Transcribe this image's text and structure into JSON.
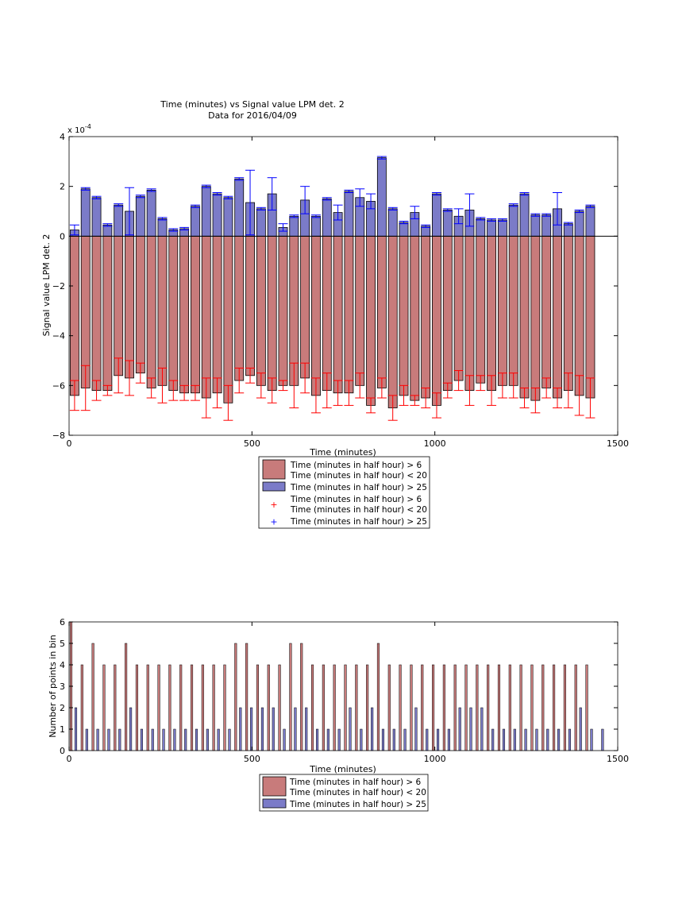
{
  "chart_data": [
    {
      "type": "bar",
      "title": "Time (minutes) vs Signal value LPM det. 2",
      "subtitle": "Data for 2016/04/09",
      "xlabel": "Time (minutes)",
      "ylabel": "Signal value LPM det. 2",
      "y_exponent": "x 10",
      "y_exponent_power": "-4",
      "xlim": [
        0,
        1500
      ],
      "ylim": [
        -8,
        4
      ],
      "xticks": [
        "0",
        "500",
        "1000",
        "1500"
      ],
      "yticks": [
        "−8",
        "−6",
        "−4",
        "−2",
        "0",
        "2",
        "4"
      ],
      "bar_width_minutes": 24,
      "categories": [
        15,
        45,
        75,
        105,
        135,
        165,
        195,
        225,
        255,
        285,
        315,
        345,
        375,
        405,
        435,
        465,
        495,
        525,
        555,
        585,
        615,
        645,
        675,
        705,
        735,
        765,
        795,
        825,
        855,
        885,
        915,
        945,
        975,
        1005,
        1035,
        1065,
        1095,
        1125,
        1155,
        1185,
        1215,
        1245,
        1275,
        1305,
        1335,
        1365,
        1395,
        1425
      ],
      "series": [
        {
          "name": "Time (minutes in half hour) > 6\nTime (minutes in half hour) < 20",
          "color": "#c87b7b",
          "error_color": "#ff0000",
          "values": [
            -6.4,
            -6.1,
            -6.2,
            -6.2,
            -5.6,
            -5.7,
            -5.5,
            -6.1,
            -6.0,
            -6.2,
            -6.3,
            -6.3,
            -6.5,
            -6.3,
            -6.7,
            -5.8,
            -5.6,
            -6.0,
            -6.2,
            -6.0,
            -6.0,
            -5.7,
            -6.4,
            -6.2,
            -6.3,
            -6.3,
            -6.0,
            -6.8,
            -6.1,
            -6.9,
            -6.4,
            -6.6,
            -6.5,
            -6.8,
            -6.2,
            -5.8,
            -6.2,
            -5.9,
            -6.2,
            -6.0,
            -6.0,
            -6.5,
            -6.6,
            -6.1,
            -6.5,
            -6.2,
            -6.4,
            -6.5
          ],
          "errors": [
            0.6,
            0.9,
            0.4,
            0.2,
            0.7,
            0.7,
            0.4,
            0.4,
            0.7,
            0.4,
            0.3,
            0.3,
            0.8,
            0.6,
            0.7,
            0.5,
            0.3,
            0.5,
            0.5,
            0.2,
            0.9,
            0.6,
            0.7,
            0.7,
            0.5,
            0.5,
            0.5,
            0.3,
            0.4,
            0.5,
            0.4,
            0.2,
            0.4,
            0.5,
            0.3,
            0.4,
            0.6,
            0.3,
            0.6,
            0.5,
            0.5,
            0.4,
            0.5,
            0.4,
            0.4,
            0.7,
            0.8,
            0.8
          ]
        },
        {
          "name": "Time (minutes in half hour) > 25",
          "color": "#7b7bc8",
          "error_color": "#0000ff",
          "values": [
            0.25,
            1.9,
            1.55,
            0.45,
            1.25,
            1.0,
            1.6,
            1.85,
            0.7,
            0.25,
            0.3,
            1.2,
            2.0,
            1.7,
            1.55,
            2.3,
            1.35,
            1.1,
            1.7,
            0.35,
            0.8,
            1.45,
            0.8,
            1.5,
            0.95,
            1.8,
            1.55,
            1.4,
            3.15,
            1.1,
            0.55,
            0.95,
            0.4,
            1.7,
            1.05,
            0.8,
            1.05,
            0.7,
            0.65,
            0.65,
            1.25,
            1.7,
            0.85,
            0.85,
            1.1,
            0.5,
            1.0,
            1.2
          ],
          "errors": [
            0.2,
            0.05,
            0.05,
            0.05,
            0.05,
            0.95,
            0.05,
            0.05,
            0.05,
            0.05,
            0.05,
            0.05,
            0.05,
            0.05,
            0.05,
            0.05,
            1.3,
            0.05,
            0.65,
            0.15,
            0.05,
            0.55,
            0.05,
            0.05,
            0.3,
            0.05,
            0.35,
            0.3,
            0.05,
            0.05,
            0.05,
            0.25,
            0.05,
            0.05,
            0.05,
            0.3,
            0.65,
            0.05,
            0.05,
            0.05,
            0.05,
            0.05,
            0.05,
            0.05,
            0.65,
            0.05,
            0.05,
            0.05
          ]
        }
      ],
      "legend": {
        "placement": "below",
        "entries": [
          {
            "kind": "bar",
            "color": "#c87b7b",
            "lines": [
              "Time (minutes in half hour) > 6",
              "Time (minutes in half hour) < 20"
            ]
          },
          {
            "kind": "bar",
            "color": "#7b7bc8",
            "lines": [
              "Time (minutes in half hour) > 25"
            ]
          },
          {
            "kind": "marker",
            "color": "#ff0000",
            "lines": [
              "Time (minutes in half hour) > 6",
              "Time (minutes in half hour) < 20"
            ]
          },
          {
            "kind": "marker",
            "color": "#0000ff",
            "lines": [
              "Time (minutes in half hour) > 25"
            ]
          }
        ]
      }
    },
    {
      "type": "bar",
      "xlabel": "Time (minutes)",
      "ylabel": "Number of points in bin",
      "xlim": [
        0,
        1500
      ],
      "ylim": [
        0,
        6
      ],
      "xticks": [
        "0",
        "500",
        "1000",
        "1500"
      ],
      "yticks": [
        "0",
        "1",
        "2",
        "3",
        "4",
        "5",
        "6"
      ],
      "categories": [
        0,
        30,
        60,
        90,
        120,
        150,
        180,
        210,
        240,
        270,
        300,
        330,
        360,
        390,
        420,
        450,
        480,
        510,
        540,
        570,
        600,
        630,
        660,
        690,
        720,
        750,
        780,
        810,
        840,
        870,
        900,
        930,
        960,
        990,
        1020,
        1050,
        1080,
        1110,
        1140,
        1170,
        1200,
        1230,
        1260,
        1290,
        1320,
        1350,
        1380,
        1410,
        1440
      ],
      "series": [
        {
          "name": "Time (minutes in half hour) > 6\nTime (minutes in half hour) < 20",
          "color": "#c87b7b",
          "values": [
            6,
            4,
            5,
            4,
            4,
            5,
            4,
            4,
            4,
            4,
            4,
            4,
            4,
            4,
            4,
            5,
            5,
            4,
            4,
            4,
            5,
            5,
            4,
            4,
            4,
            4,
            4,
            4,
            5,
            4,
            4,
            4,
            4,
            4,
            4,
            4,
            4,
            4,
            4,
            4,
            4,
            4,
            4,
            4,
            4,
            4,
            4,
            4,
            null
          ]
        },
        {
          "name": "Time (minutes in half hour) > 25",
          "color": "#7b7bc8",
          "values": [
            2,
            1,
            1,
            1,
            1,
            2,
            1,
            1,
            1,
            1,
            1,
            1,
            1,
            1,
            1,
            2,
            2,
            2,
            2,
            1,
            2,
            2,
            1,
            1,
            1,
            2,
            1,
            2,
            1,
            1,
            1,
            2,
            1,
            1,
            1,
            2,
            2,
            2,
            1,
            1,
            1,
            1,
            1,
            1,
            1,
            1,
            2,
            1,
            1
          ]
        }
      ],
      "legend": {
        "placement": "below",
        "entries": [
          {
            "kind": "bar",
            "color": "#c87b7b",
            "lines": [
              "Time (minutes in half hour) > 6",
              "Time (minutes in half hour) < 20"
            ]
          },
          {
            "kind": "bar",
            "color": "#7b7bc8",
            "lines": [
              "Time (minutes in half hour) > 25"
            ]
          }
        ]
      }
    }
  ]
}
